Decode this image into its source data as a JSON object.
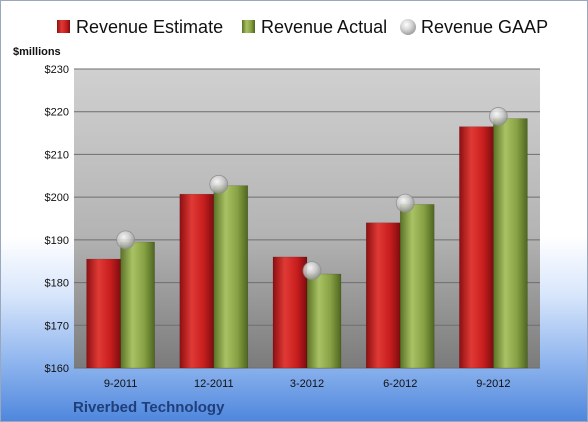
{
  "chart_data": {
    "type": "bar",
    "categories": [
      "9-2011",
      "12-2011",
      "3-2012",
      "6-2012",
      "9-2012"
    ],
    "series": [
      {
        "name": "Revenue Estimate",
        "values": [
          185.5,
          200.7,
          186.0,
          194.0,
          216.5
        ],
        "color": "#c81e1e"
      },
      {
        "name": "Revenue Actual",
        "values": [
          189.5,
          202.7,
          182.0,
          198.3,
          218.4
        ],
        "color": "#8aa446"
      }
    ],
    "markers": {
      "name": "Revenue GAAP",
      "values": [
        190.0,
        203.0,
        182.8,
        198.6,
        218.9
      ],
      "color": "#b9b9b9"
    },
    "ylabel": "$millions",
    "ylim": [
      160,
      230
    ],
    "yticks": [
      "$160",
      "$170",
      "$180",
      "$190",
      "$200",
      "$210",
      "$220",
      "$230"
    ],
    "grid": true,
    "legend_position": "top",
    "footer": "Riverbed Technology"
  }
}
